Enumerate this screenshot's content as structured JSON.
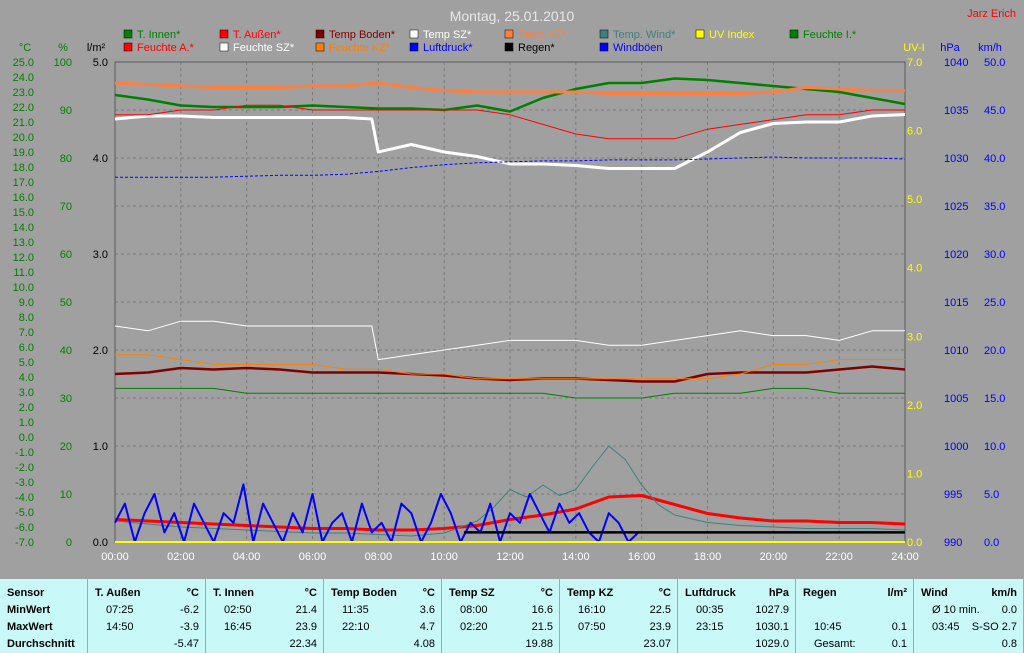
{
  "title": "Montag, 25.01.2010",
  "author": "Jarz Erich",
  "colors": {
    "background": "#a0a0a0",
    "plot": "#a0a0a0",
    "grid": "#7c7c7c",
    "green_axis": "#007f00",
    "stats_bg": "#c8f8f8"
  },
  "legend": [
    {
      "label": "T. Innen*",
      "color": "#007f00"
    },
    {
      "label": "T. Außen*",
      "color": "#ff0000"
    },
    {
      "label": "Temp Boden*",
      "color": "#7f0000"
    },
    {
      "label": "Temp SZ*",
      "color": "#ffffff"
    },
    {
      "label": "Temp KZ*",
      "color": "#ff7f3f"
    },
    {
      "label": "Temp. Wind*",
      "color": "#3f7f7f"
    },
    {
      "label": "UV Index",
      "color": "#ffff00"
    },
    {
      "label": "Feuchte I.*",
      "color": "#007f00"
    },
    {
      "label": "Feuchte A.*",
      "color": "#ff0000"
    },
    {
      "label": "Feuchte SZ*",
      "color": "#ffffff"
    },
    {
      "label": "Feuchte KZ*",
      "color": "#ff7f00"
    },
    {
      "label": "Luftdruck*",
      "color": "#0000ff"
    },
    {
      "label": "Regen*",
      "color": "#000000"
    },
    {
      "label": "Windböen",
      "color": "#0000ff"
    }
  ],
  "chart_data": {
    "type": "line",
    "x_ticks": [
      "00:00",
      "02:00",
      "04:00",
      "06:00",
      "08:00",
      "10:00",
      "12:00",
      "14:00",
      "16:00",
      "18:00",
      "20:00",
      "22:00",
      "24:00"
    ],
    "x_range": [
      0,
      24
    ],
    "axes": {
      "temp": {
        "unit": "°C",
        "range": [
          -7,
          25
        ],
        "ticks": [
          "25.0",
          "24.0",
          "23.0",
          "22.0",
          "21.0",
          "20.0",
          "19.0",
          "18.0",
          "17.0",
          "16.0",
          "15.0",
          "14.0",
          "13.0",
          "12.0",
          "11.0",
          "10.0",
          "9.0",
          "8.0",
          "7.0",
          "6.0",
          "5.0",
          "4.0",
          "3.0",
          "2.0",
          "1.0",
          "0.0",
          "-1.0",
          "-2.0",
          "-3.0",
          "-4.0",
          "-5.0",
          "-6.0",
          "-7.0"
        ],
        "color": "#007f00"
      },
      "humidity": {
        "unit": "%",
        "range": [
          0,
          100
        ],
        "ticks": [
          "100",
          "90",
          "80",
          "70",
          "60",
          "50",
          "40",
          "30",
          "20",
          "10",
          "0"
        ],
        "color": "#007f00"
      },
      "rain": {
        "unit": "l/m²",
        "range": [
          0,
          5
        ],
        "ticks": [
          "5.0",
          "4.0",
          "3.0",
          "2.0",
          "1.0",
          "0.0"
        ],
        "color": "#000000"
      },
      "uv": {
        "unit": "UV-I",
        "range": [
          0,
          7
        ],
        "ticks": [
          "7.0",
          "6.0",
          "5.0",
          "4.0",
          "3.0",
          "2.0",
          "1.0",
          "0.0"
        ],
        "color": "#ffff00"
      },
      "pressure": {
        "unit": "hPa",
        "range": [
          990,
          1040
        ],
        "ticks": [
          "1040",
          "1035",
          "1030",
          "1025",
          "1020",
          "1015",
          "1010",
          "1005",
          "1000",
          "995",
          "990"
        ],
        "color": "#0000ff"
      },
      "wind": {
        "unit": "km/h",
        "range": [
          0,
          50
        ],
        "ticks": [
          "50.0",
          "45.0",
          "40.0",
          "35.0",
          "30.0",
          "25.0",
          "20.0",
          "15.0",
          "10.0",
          "5.0",
          "0.0"
        ],
        "color": "#0000ff"
      }
    },
    "series": [
      {
        "name": "T. Innen*",
        "axis": "temp",
        "color": "#007f00",
        "width": 2.5,
        "x": [
          0,
          1,
          2,
          3,
          4,
          5,
          6,
          7,
          8,
          9,
          10,
          11,
          12,
          13,
          14,
          15,
          16,
          17,
          18,
          19,
          20,
          21,
          22,
          23,
          24
        ],
        "y": [
          22.8,
          22.5,
          22.1,
          22.0,
          22.0,
          22.0,
          22.1,
          22.0,
          21.9,
          21.9,
          21.8,
          22.1,
          21.7,
          22.6,
          23.2,
          23.6,
          23.6,
          23.9,
          23.8,
          23.6,
          23.4,
          23.2,
          23.0,
          22.6,
          22.2
        ]
      },
      {
        "name": "T. Außen*",
        "axis": "temp",
        "color": "#ff0000",
        "width": 3,
        "x": [
          0,
          1,
          2,
          3,
          4,
          5,
          6,
          7,
          8,
          9,
          10,
          11,
          12,
          13,
          14,
          15,
          16,
          17,
          18,
          19,
          20,
          21,
          22,
          23,
          24
        ],
        "y": [
          -5.5,
          -5.6,
          -5.7,
          -5.8,
          -5.9,
          -6.0,
          -6.1,
          -6.1,
          -6.2,
          -6.2,
          -6.1,
          -5.9,
          -5.5,
          -5.2,
          -4.8,
          -4.0,
          -3.9,
          -4.5,
          -5.1,
          -5.4,
          -5.6,
          -5.6,
          -5.7,
          -5.7,
          -5.8
        ]
      },
      {
        "name": "Temp Boden*",
        "axis": "temp",
        "color": "#7f0000",
        "width": 2.5,
        "x": [
          0,
          1,
          2,
          3,
          4,
          5,
          6,
          7,
          8,
          9,
          10,
          11,
          12,
          13,
          14,
          15,
          16,
          17,
          18,
          19,
          20,
          21,
          22,
          23,
          24
        ],
        "y": [
          4.2,
          4.3,
          4.6,
          4.5,
          4.6,
          4.5,
          4.3,
          4.3,
          4.3,
          4.2,
          4.1,
          3.9,
          3.8,
          3.9,
          3.9,
          3.8,
          3.7,
          3.7,
          4.2,
          4.3,
          4.3,
          4.3,
          4.5,
          4.7,
          4.5
        ]
      },
      {
        "name": "Temp SZ*",
        "axis": "temp",
        "color": "#ffffff",
        "width": 3,
        "x": [
          0,
          1,
          2,
          3,
          4,
          5,
          6,
          7,
          7.8,
          8,
          9,
          10,
          11,
          12,
          13,
          14,
          15,
          16,
          17,
          18,
          19,
          20,
          21,
          22,
          23,
          24
        ],
        "y": [
          21.2,
          21.4,
          21.4,
          21.3,
          21.3,
          21.3,
          21.3,
          21.3,
          21.2,
          19.0,
          19.5,
          19.0,
          18.7,
          18.2,
          18.2,
          18.1,
          17.9,
          17.9,
          17.9,
          19.0,
          20.3,
          20.9,
          21.0,
          21.0,
          21.4,
          21.5
        ]
      },
      {
        "name": "Temp KZ*",
        "axis": "temp",
        "color": "#ff7f3f",
        "width": 3,
        "x": [
          0,
          1,
          2,
          3,
          4,
          5,
          6,
          7,
          8,
          9,
          10,
          11,
          12,
          13,
          14,
          15,
          16,
          17,
          18,
          19,
          20,
          21,
          22,
          23,
          24
        ],
        "y": [
          23.6,
          23.5,
          23.4,
          23.3,
          23.3,
          23.3,
          23.4,
          23.4,
          23.6,
          23.3,
          23.1,
          23.0,
          23.0,
          23.0,
          23.0,
          22.9,
          22.9,
          22.9,
          22.9,
          22.9,
          23.0,
          23.3,
          23.2,
          23.1,
          23.1
        ]
      },
      {
        "name": "Feuchte A.*",
        "axis": "humidity",
        "color": "#ff0000",
        "width": 1,
        "x": [
          0,
          1,
          2,
          3,
          4,
          5,
          6,
          7,
          8,
          9,
          10,
          11,
          12,
          13,
          14,
          15,
          16,
          17,
          18,
          19,
          20,
          21,
          22,
          23,
          24
        ],
        "y": [
          89,
          89,
          90,
          90,
          91,
          91,
          90,
          90,
          90,
          90,
          90,
          90,
          89,
          87,
          85,
          84,
          84,
          84,
          86,
          87,
          88,
          89,
          89,
          90,
          90
        ]
      },
      {
        "name": "Feuchte SZ*",
        "axis": "humidity",
        "color": "#ffffff",
        "width": 1,
        "x": [
          0,
          1,
          2,
          3,
          4,
          5,
          6,
          7,
          7.8,
          8,
          9,
          10,
          11,
          12,
          13,
          14,
          15,
          16,
          17,
          18,
          19,
          20,
          21,
          22,
          23,
          24
        ],
        "y": [
          45,
          44,
          46,
          46,
          45,
          45,
          45,
          45,
          45,
          38,
          39,
          40,
          41,
          42,
          42,
          42,
          41,
          41,
          42,
          43,
          44,
          43,
          43,
          42,
          44,
          44
        ]
      },
      {
        "name": "Feuchte KZ*",
        "axis": "humidity",
        "color": "#ff7f00",
        "width": 1,
        "x": [
          0,
          1,
          2,
          3,
          4,
          5,
          6,
          7,
          8,
          9,
          10,
          11,
          12,
          13,
          14,
          15,
          16,
          17,
          18,
          19,
          20,
          21,
          22,
          23,
          24
        ],
        "y": [
          39,
          39,
          38,
          37,
          37,
          37,
          37,
          36,
          36,
          35,
          35,
          34,
          34,
          34,
          34,
          34,
          34,
          34,
          34,
          35,
          37,
          37,
          38,
          38,
          38
        ]
      },
      {
        "name": "Feuchte I.*",
        "axis": "humidity",
        "color": "#007f00",
        "width": 1,
        "x": [
          0,
          1,
          2,
          3,
          4,
          5,
          6,
          7,
          8,
          9,
          10,
          11,
          12,
          13,
          14,
          15,
          16,
          17,
          18,
          19,
          20,
          21,
          22,
          23,
          24
        ],
        "y": [
          32,
          32,
          32,
          32,
          31,
          31,
          31,
          31,
          31,
          31,
          31,
          31,
          31,
          31,
          30,
          30,
          30,
          31,
          31,
          31,
          32,
          32,
          31,
          31,
          31
        ]
      },
      {
        "name": "Luftdruck*",
        "axis": "pressure",
        "color": "#0000ff",
        "width": 1,
        "dash": "3,2",
        "x": [
          0,
          1,
          2,
          3,
          4,
          5,
          6,
          7,
          8,
          9,
          10,
          11,
          12,
          13,
          14,
          15,
          16,
          17,
          18,
          19,
          20,
          21,
          22,
          23,
          24
        ],
        "y": [
          1028.0,
          1028.0,
          1028.0,
          1028.0,
          1028.1,
          1028.2,
          1028.2,
          1028.3,
          1028.6,
          1029.0,
          1029.3,
          1029.5,
          1029.6,
          1029.7,
          1029.7,
          1029.8,
          1029.8,
          1029.8,
          1029.9,
          1030.0,
          1030.1,
          1030.0,
          1030.0,
          1030.0,
          1029.9
        ]
      },
      {
        "name": "Temp. Wind*",
        "axis": "temp",
        "color": "#3f7f7f",
        "width": 1,
        "x": [
          0,
          1,
          2,
          3,
          4,
          5,
          6,
          7,
          8,
          9,
          10,
          11,
          11.5,
          12,
          12.5,
          13,
          13.5,
          14,
          14.5,
          15,
          15.5,
          16,
          16.5,
          17,
          18,
          19,
          20,
          21,
          22,
          23,
          24
        ],
        "y": [
          -5.6,
          -5.8,
          -6.0,
          -6.1,
          -6.2,
          -6.3,
          -6.4,
          -6.4,
          -6.5,
          -6.6,
          -6.4,
          -5.6,
          -4.7,
          -3.5,
          -4.0,
          -3.2,
          -3.9,
          -3.5,
          -2.0,
          -0.6,
          -1.5,
          -3.2,
          -4.5,
          -5.2,
          -5.7,
          -5.9,
          -6.0,
          -6.1,
          -6.1,
          -6.1,
          -6.2
        ]
      },
      {
        "name": "Windböen",
        "axis": "wind",
        "color": "#0000ff",
        "width": 2,
        "x": [
          0,
          0.3,
          0.6,
          0.9,
          1.2,
          1.5,
          1.8,
          2.1,
          2.4,
          2.7,
          3.0,
          3.3,
          3.6,
          3.9,
          4.2,
          4.5,
          4.8,
          5.1,
          5.4,
          5.7,
          6.0,
          6.3,
          6.6,
          6.9,
          7.2,
          7.5,
          7.8,
          8.1,
          8.4,
          8.7,
          9.0,
          9.3,
          9.6,
          9.9,
          10.2,
          10.5,
          10.8,
          11.1,
          11.4,
          11.7,
          12.0,
          12.3,
          12.6,
          12.9,
          13.2,
          13.5,
          13.8,
          14.1,
          14.4,
          14.7,
          15.0,
          15.3,
          15.6,
          15.9
        ],
        "y": [
          2,
          4,
          0,
          3,
          5,
          1,
          3,
          0,
          4,
          2,
          0,
          3,
          2,
          6,
          0,
          4,
          2,
          0,
          3,
          1,
          5,
          0,
          2,
          3,
          0,
          4,
          1,
          2,
          0,
          4,
          3,
          0,
          2,
          5,
          3,
          0,
          2,
          1,
          4,
          0,
          3,
          2,
          5,
          3,
          1,
          4,
          2,
          3,
          1,
          0,
          3,
          2,
          0,
          1
        ]
      },
      {
        "name": "Regen*",
        "axis": "rain",
        "color": "#000000",
        "width": 2.5,
        "x": [
          10.6,
          24
        ],
        "y": [
          0.1,
          0.1
        ]
      },
      {
        "name": "UV Index",
        "axis": "uv",
        "color": "#ffff00",
        "width": 2,
        "x": [
          0,
          24
        ],
        "y": [
          0,
          0
        ]
      }
    ]
  },
  "stats": {
    "sensor": {
      "header": "Sensor",
      "rows": [
        "MinWert",
        "MaxWert",
        "Durchschnitt"
      ]
    },
    "blocks": [
      {
        "name": "T. Außen",
        "unit": "°C",
        "rows": [
          [
            "07:25",
            "-6.2"
          ],
          [
            "14:50",
            "-3.9"
          ],
          [
            "",
            "-5.47"
          ]
        ]
      },
      {
        "name": "T. Innen",
        "unit": "°C",
        "rows": [
          [
            "02:50",
            "21.4"
          ],
          [
            "16:45",
            "23.9"
          ],
          [
            "",
            "22.34"
          ]
        ]
      },
      {
        "name": "Temp Boden",
        "unit": "°C",
        "rows": [
          [
            "11:35",
            "3.6"
          ],
          [
            "22:10",
            "4.7"
          ],
          [
            "",
            "4.08"
          ]
        ]
      },
      {
        "name": "Temp SZ",
        "unit": "°C",
        "rows": [
          [
            "08:00",
            "16.6"
          ],
          [
            "02:20",
            "21.5"
          ],
          [
            "",
            "19.88"
          ]
        ]
      },
      {
        "name": "Temp KZ",
        "unit": "°C",
        "rows": [
          [
            "16:10",
            "22.5"
          ],
          [
            "07:50",
            "23.9"
          ],
          [
            "",
            "23.07"
          ]
        ]
      },
      {
        "name": "Luftdruck",
        "unit": "hPa",
        "rows": [
          [
            "00:35",
            "1027.9"
          ],
          [
            "23:15",
            "1030.1"
          ],
          [
            "",
            "1029.0"
          ]
        ]
      },
      {
        "name": "Regen",
        "unit": "l/m²",
        "rows": [
          [
            "",
            ""
          ],
          [
            "10:45",
            "0.1"
          ],
          [
            "Gesamt:",
            "0.1"
          ]
        ]
      },
      {
        "name": "Wind",
        "unit": "km/h",
        "rows": [
          [
            "Ø 10 min.",
            "0.0"
          ],
          [
            "03:45",
            "S-SO 2.7"
          ],
          [
            "",
            "0.8"
          ]
        ]
      }
    ]
  }
}
